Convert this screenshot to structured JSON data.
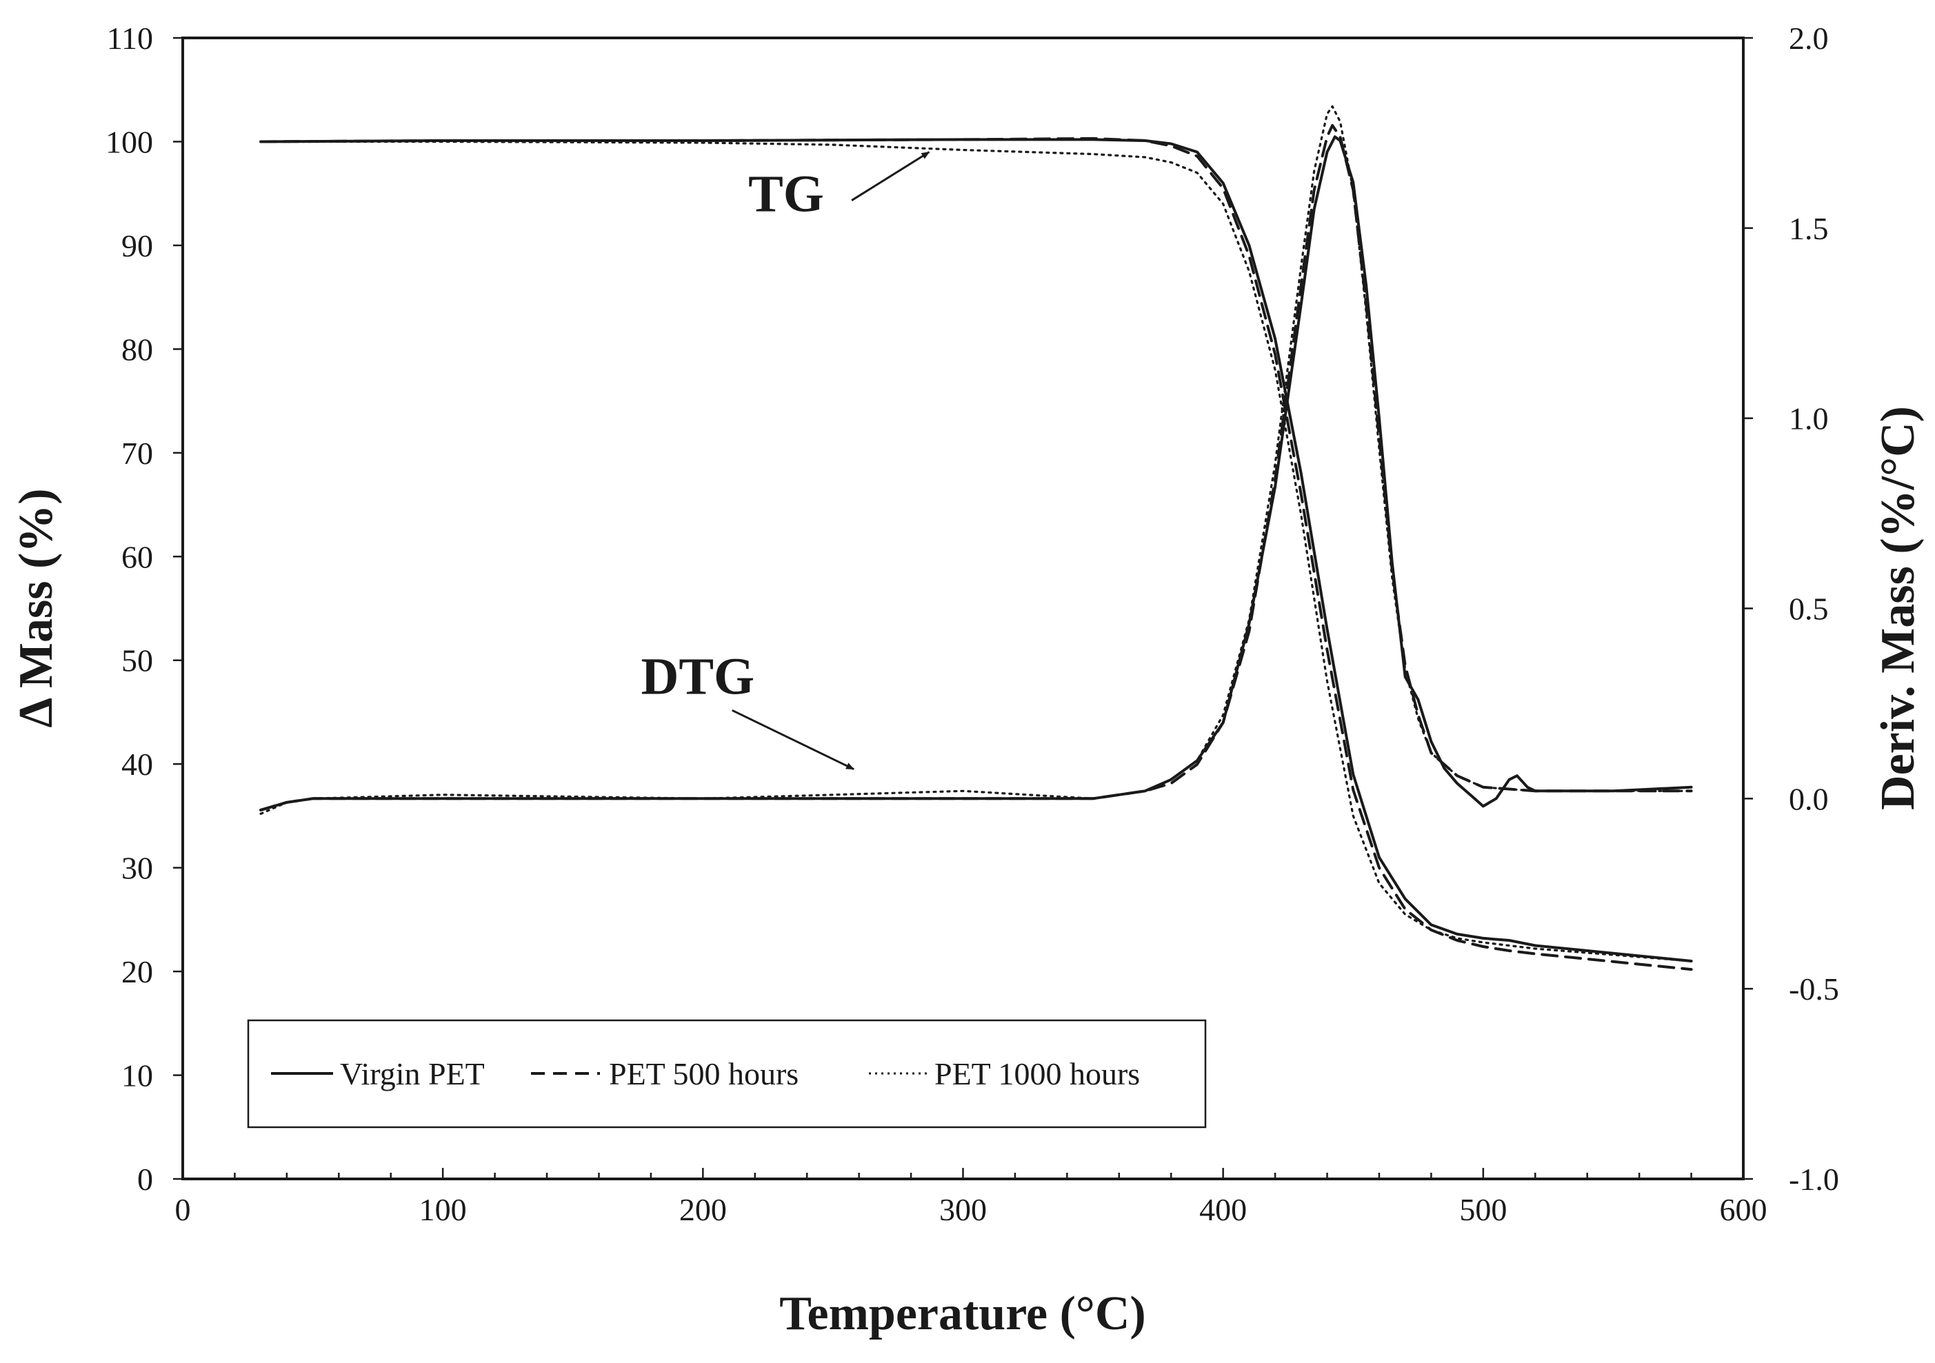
{
  "chart_data": {
    "type": "line",
    "title": "",
    "xlabel": "Temperature (°C)",
    "ylabel": "Δ Mass  (%)",
    "y2label": "Deriv. Mass (%/°C)",
    "xlim": [
      0,
      600
    ],
    "ylim": [
      0,
      110
    ],
    "y2lim": [
      -1.0,
      2.0
    ],
    "x_ticks": [
      "0",
      "100",
      "200",
      "300",
      "400",
      "500",
      "600"
    ],
    "y_ticks": [
      "0",
      "10",
      "20",
      "30",
      "40",
      "50",
      "60",
      "70",
      "80",
      "90",
      "100",
      "110"
    ],
    "y2_ticks": [
      "-1.0",
      "-0.5",
      "0.0",
      "0.5",
      "1.0",
      "1.5",
      "2.0"
    ],
    "grid": false,
    "legend_position": "bottom-left",
    "annotations": [
      {
        "text": "TG",
        "x": 232,
        "y": 95,
        "arrow_to": [
          287,
          99
        ]
      },
      {
        "text": "DTG",
        "x": 198,
        "y": 48.5,
        "arrow_to": [
          258,
          39.5
        ]
      }
    ],
    "series": [
      {
        "name": "Virgin PET",
        "style": "solid",
        "curve": "TG",
        "axis": "left",
        "x": [
          30,
          100,
          200,
          300,
          350,
          370,
          380,
          390,
          400,
          410,
          420,
          430,
          440,
          450,
          460,
          470,
          480,
          490,
          500,
          510,
          520,
          540,
          560,
          580
        ],
        "y": [
          100,
          100.1,
          100.1,
          100.2,
          100.2,
          100.1,
          99.8,
          99,
          96,
          90,
          81,
          68,
          53,
          39,
          31,
          27,
          24.5,
          23.6,
          23.2,
          23,
          22.5,
          22,
          21.5,
          21
        ]
      },
      {
        "name": "PET 500 hours",
        "style": "dashed",
        "curve": "TG",
        "axis": "left",
        "x": [
          30,
          100,
          200,
          300,
          350,
          370,
          380,
          390,
          400,
          410,
          420,
          430,
          440,
          450,
          460,
          470,
          480,
          490,
          500,
          510,
          520,
          540,
          560,
          580
        ],
        "y": [
          100,
          100.1,
          100.1,
          100.2,
          100.3,
          100.1,
          99.6,
          98.6,
          95.5,
          89,
          79.5,
          66,
          51,
          37.5,
          30,
          26,
          24,
          23,
          22.4,
          22,
          21.7,
          21.2,
          20.7,
          20.2
        ]
      },
      {
        "name": "PET 1000 hours",
        "style": "dotted",
        "curve": "TG",
        "axis": "left",
        "x": [
          30,
          100,
          200,
          250,
          300,
          350,
          370,
          380,
          390,
          400,
          410,
          420,
          430,
          440,
          450,
          460,
          470,
          480,
          490,
          500,
          510,
          520,
          540,
          560,
          580
        ],
        "y": [
          100,
          100,
          99.9,
          99.7,
          99.2,
          98.8,
          98.5,
          98,
          97,
          94,
          87.5,
          78,
          64,
          48,
          35,
          28.5,
          25.5,
          24,
          23.2,
          22.8,
          22.5,
          22.2,
          21.8,
          21.4,
          21
        ]
      },
      {
        "name": "Virgin PET",
        "style": "solid",
        "curve": "DTG",
        "axis": "right",
        "x": [
          30,
          40,
          50,
          100,
          200,
          300,
          350,
          370,
          380,
          390,
          400,
          405,
          410,
          420,
          430,
          435,
          440,
          443,
          445,
          450,
          455,
          460,
          465,
          470,
          475,
          480,
          485,
          490,
          495,
          500,
          505,
          510,
          513,
          517,
          520,
          530,
          550,
          580
        ],
        "y": [
          -0.03,
          -0.01,
          0.0,
          0.0,
          0.0,
          0.0,
          0.0,
          0.02,
          0.05,
          0.1,
          0.2,
          0.33,
          0.46,
          0.82,
          1.3,
          1.55,
          1.7,
          1.74,
          1.73,
          1.62,
          1.35,
          1.0,
          0.62,
          0.32,
          0.26,
          0.15,
          0.08,
          0.04,
          0.01,
          -0.02,
          0.0,
          0.05,
          0.06,
          0.03,
          0.02,
          0.02,
          0.02,
          0.03
        ]
      },
      {
        "name": "PET 500 hours",
        "style": "dashed",
        "curve": "DTG",
        "axis": "right",
        "x": [
          30,
          40,
          50,
          100,
          200,
          300,
          350,
          370,
          380,
          390,
          400,
          410,
          420,
          430,
          435,
          440,
          442,
          445,
          450,
          455,
          460,
          465,
          470,
          475,
          480,
          490,
          500,
          520,
          550,
          580
        ],
        "y": [
          -0.03,
          -0.01,
          0.0,
          0.0,
          0.0,
          0.0,
          0.0,
          0.02,
          0.04,
          0.09,
          0.2,
          0.44,
          0.84,
          1.35,
          1.6,
          1.74,
          1.77,
          1.74,
          1.6,
          1.3,
          0.95,
          0.6,
          0.35,
          0.22,
          0.12,
          0.06,
          0.03,
          0.02,
          0.02,
          0.02
        ]
      },
      {
        "name": "PET 1000 hours",
        "style": "dotted",
        "curve": "DTG",
        "axis": "right",
        "x": [
          30,
          40,
          50,
          100,
          200,
          300,
          350,
          370,
          380,
          390,
          400,
          410,
          420,
          430,
          435,
          440,
          442,
          445,
          450,
          455,
          460,
          465,
          470,
          475,
          480,
          490,
          500,
          520,
          550,
          580
        ],
        "y": [
          -0.04,
          -0.01,
          0.0,
          0.01,
          0.0,
          0.02,
          0.0,
          0.02,
          0.05,
          0.1,
          0.22,
          0.47,
          0.88,
          1.4,
          1.65,
          1.8,
          1.82,
          1.78,
          1.6,
          1.28,
          0.92,
          0.58,
          0.34,
          0.21,
          0.12,
          0.06,
          0.03,
          0.02,
          0.02,
          0.02
        ]
      }
    ]
  }
}
